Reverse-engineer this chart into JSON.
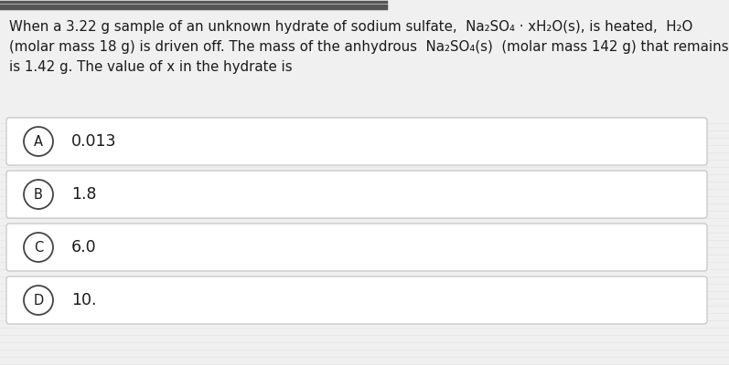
{
  "background_color": "#f0f0f0",
  "question_text_line1": "When a 3.22 g sample of an unknown hydrate of sodium sulfate,  Na₂SO₄ · xH₂O(s), is heated,  H₂O",
  "question_text_line2": "(molar mass 18 g) is driven off. The mass of the anhydrous  Na₂SO₄(s)  (molar mass 142 g) that remains",
  "question_text_line3": "is 1.42 g. The value of x in the hydrate is",
  "options": [
    {
      "label": "A",
      "text": "0.013"
    },
    {
      "label": "B",
      "text": "1.8"
    },
    {
      "label": "C",
      "text": "6.0"
    },
    {
      "label": "D",
      "text": "10."
    }
  ],
  "option_box_facecolor": "#ffffff",
  "option_box_edgecolor": "#c0c0c0",
  "bg_stripe_color": "#d8d8d8",
  "label_circle_facecolor": "#ffffff",
  "label_circle_edgecolor": "#444444",
  "text_color": "#1a1a1a",
  "font_size_question": 10.8,
  "font_size_option": 12.5,
  "font_size_label": 10.5,
  "top_bar_color": "#888888",
  "top_bar_dash_color": "#555555"
}
